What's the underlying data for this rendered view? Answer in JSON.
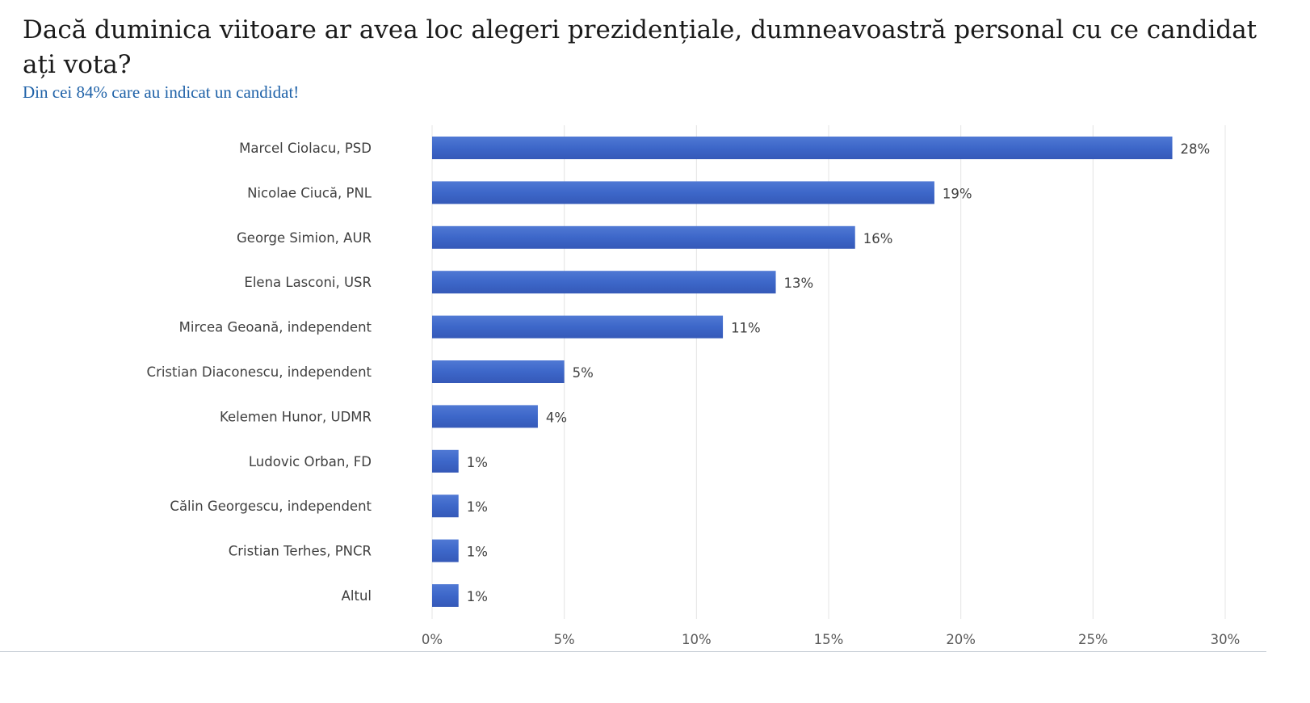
{
  "header": {
    "title": "Dacă duminica viitoare ar avea loc alegeri prezidențiale, dumneavoastră personal cu ce candidat ați vota?",
    "subtitle": "Din cei 84% care au indicat un candidat!"
  },
  "colors": {
    "bar": "#3d67c9",
    "gridline": "#e4e4e4",
    "title": "#1a1a1a",
    "subtitle": "#1f62a8"
  },
  "chart_data": {
    "type": "bar",
    "orientation": "horizontal",
    "title": "Dacă duminica viitoare ar avea loc alegeri prezidențiale, dumneavoastră personal cu ce candidat ați vota?",
    "subtitle": "Din cei 84% care au indicat un candidat!",
    "categories": [
      "Marcel Ciolacu, PSD",
      "Nicolae Ciucă, PNL",
      "George Simion, AUR",
      "Elena Lasconi, USR",
      "Mircea Geoană, independent",
      "Cristian Diaconescu, independent",
      "Kelemen Hunor, UDMR",
      "Ludovic Orban, FD",
      "Călin Georgescu, independent",
      "Cristian Terhes, PNCR",
      "Altul"
    ],
    "values": [
      28,
      19,
      16,
      13,
      11,
      5,
      4,
      1,
      1,
      1,
      1
    ],
    "data_labels": [
      "28%",
      "19%",
      "16%",
      "13%",
      "11%",
      "5%",
      "4%",
      "1%",
      "1%",
      "1%",
      "1%"
    ],
    "xlim": [
      0,
      30
    ],
    "x_ticks": [
      0,
      5,
      10,
      15,
      20,
      25,
      30
    ],
    "x_tick_labels": [
      "0%",
      "5%",
      "10%",
      "15%",
      "20%",
      "25%",
      "30%"
    ],
    "grid": "vertical",
    "legend": "none"
  }
}
